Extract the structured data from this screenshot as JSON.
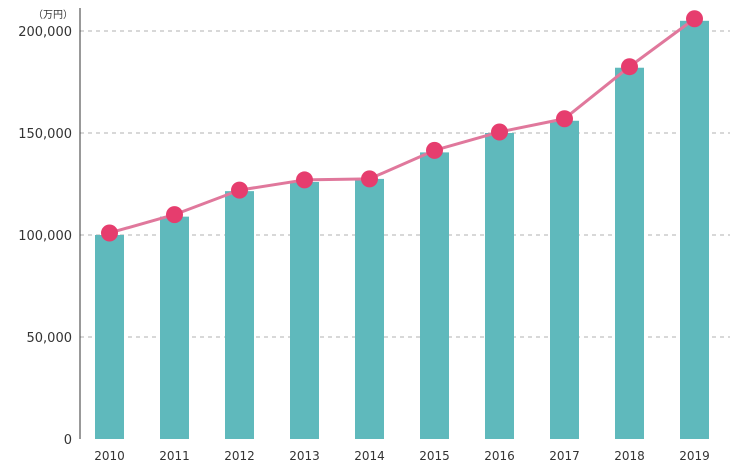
{
  "chart_data": {
    "type": "bar",
    "unit_label": "（万円）",
    "categories": [
      "2010",
      "2011",
      "2012",
      "2013",
      "2014",
      "2015",
      "2016",
      "2017",
      "2018",
      "2019"
    ],
    "series": [
      {
        "type": "bar",
        "values": [
          100000,
          109000,
          121500,
          126000,
          127500,
          140500,
          150000,
          156000,
          182000,
          205000
        ]
      },
      {
        "type": "line",
        "values": [
          101000,
          110000,
          122000,
          127000,
          127500,
          141500,
          150500,
          157000,
          182500,
          206000
        ]
      }
    ],
    "ylim": [
      0,
      200000
    ],
    "y_ticks": [
      {
        "value": 0,
        "label": "0"
      },
      {
        "value": 50000,
        "label": "50,000"
      },
      {
        "value": 100000,
        "label": "100,000"
      },
      {
        "value": 150000,
        "label": "150,000"
      },
      {
        "value": 200000,
        "label": "200,000"
      }
    ],
    "grid": true,
    "colors": {
      "bar": "#5fb9bc",
      "line": "#e0789c",
      "marker": "#e63d6e",
      "axis": "#333333",
      "grid": "#999999"
    }
  }
}
